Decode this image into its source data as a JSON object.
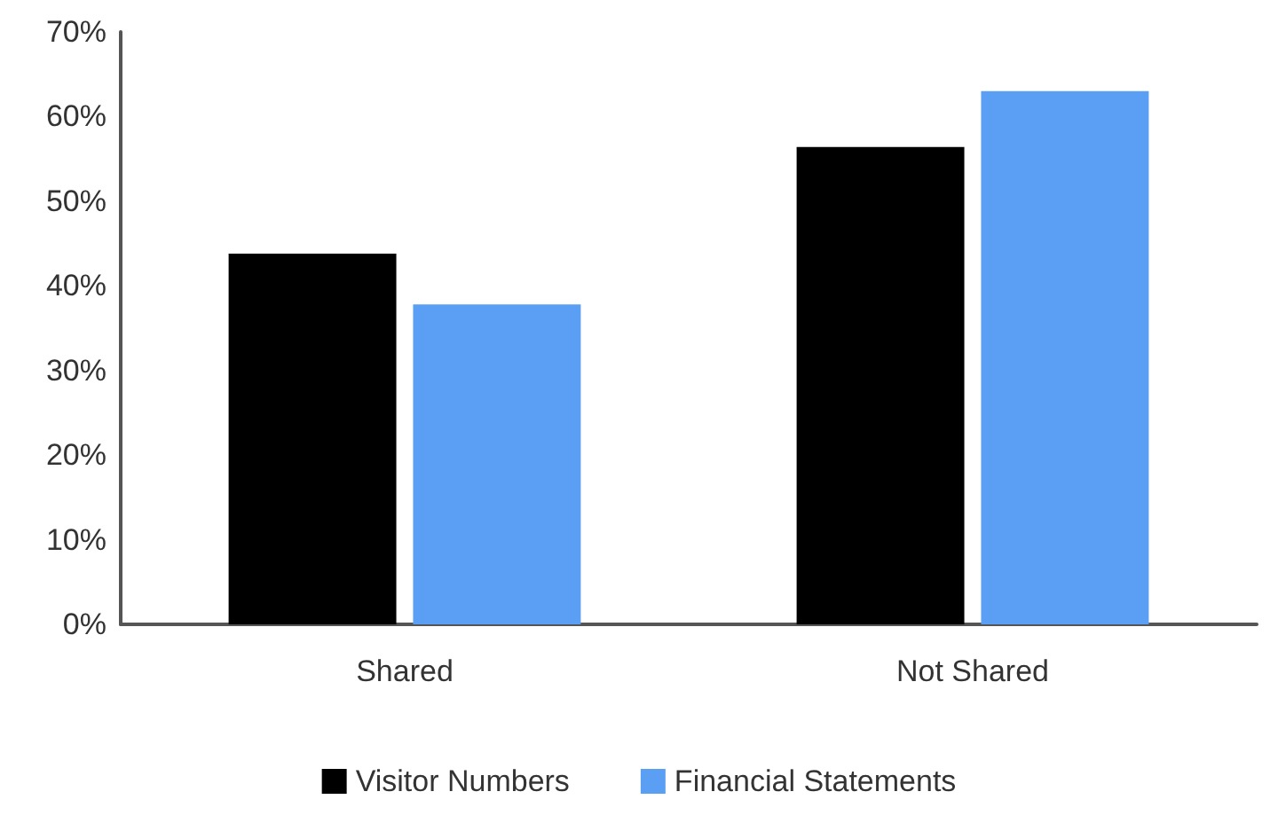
{
  "chart_data": {
    "type": "bar",
    "categories": [
      "Shared",
      "Not Shared"
    ],
    "series": [
      {
        "name": "Visitor Numbers",
        "color": "#000000",
        "values": [
          43.8,
          56.4
        ]
      },
      {
        "name": "Financial Statements",
        "color": "#5b9ff5",
        "values": [
          37.8,
          63
        ]
      }
    ],
    "ylim": [
      0,
      70
    ],
    "yticks": [
      {
        "value": 0,
        "label": "0%"
      },
      {
        "value": 10,
        "label": "10%"
      },
      {
        "value": 20,
        "label": "20%"
      },
      {
        "value": 30,
        "label": "30%"
      },
      {
        "value": 40,
        "label": "40%"
      },
      {
        "value": 50,
        "label": "50%"
      },
      {
        "value": 60,
        "label": "60%"
      },
      {
        "value": 70,
        "label": "70%"
      }
    ],
    "grid": false,
    "legend": "bottom"
  }
}
